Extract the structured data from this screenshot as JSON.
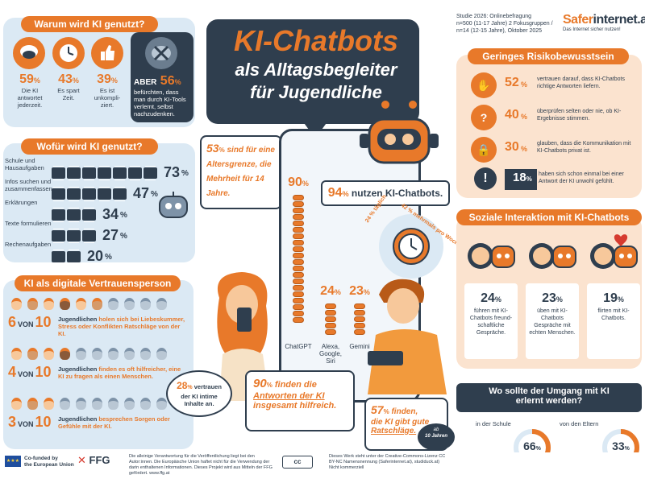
{
  "header": {
    "title": "KI-Chatbots",
    "subtitle_line1": "als Alltagsbegleiter",
    "subtitle_line2": "für Jugendliche",
    "study_line1": "Studie 2026: Onlinebefragung",
    "study_line2": "n=500 (11-17 Jahre) 2 Fokusgruppen /",
    "study_line3": "n=14 (12-15 Jahre), Oktober 2025",
    "brand_a": "Safer",
    "brand_b": "internet.at",
    "brand_tagline": "Das Internet sicher nutzen!"
  },
  "warum": {
    "title": "Warum wird KI genutzt?",
    "items": [
      {
        "pct": "59",
        "unit": "%",
        "text": "Die KI antwortet jederzeit."
      },
      {
        "pct": "43",
        "unit": "%",
        "text": "Es spart Zeit."
      },
      {
        "pct": "39",
        "unit": "%",
        "text": "Es ist unkompli-ziert."
      }
    ],
    "aber_label": "ABER",
    "aber_pct": "56",
    "aber_unit": "%",
    "aber_text": "befürchten, dass man durch KI-Tools verlernt, selbst nachzudenken."
  },
  "wofuer": {
    "title": "Wofür wird KI genutzt?",
    "items": [
      {
        "label": "Schule und Hausaufgaben",
        "pct": "73",
        "unit": "%",
        "value": 73
      },
      {
        "label": "Infos suchen und zusammenfassen",
        "pct": "47",
        "unit": "%",
        "value": 47
      },
      {
        "label": "Erklärungen",
        "pct": "34",
        "unit": "%",
        "value": 34
      },
      {
        "label": "Texte formulieren",
        "pct": "27",
        "unit": "%",
        "value": 27
      },
      {
        "label": "Rechenaufgaben",
        "pct": "20",
        "unit": "%",
        "value": 20
      }
    ]
  },
  "vertrauen": {
    "title": "KI als digitale Vertrauensperson",
    "rows": [
      {
        "n": "6",
        "von": "VON",
        "total": "10",
        "highlight": 6,
        "text_a": "Jugendlichen",
        "text_b": " holen sich bei Liebeskummer, Stress oder Konflikten Ratschläge von der KI."
      },
      {
        "n": "4",
        "von": "VON",
        "total": "10",
        "highlight": 4,
        "text_a": "Jugendlichen",
        "text_b": " finden es oft hilfreicher, eine KI zu fragen als einen Menschen."
      },
      {
        "n": "3",
        "von": "VON",
        "total": "10",
        "highlight": 3,
        "text_a": "Jugendlichen",
        "text_b": " besprechen Sorgen oder Gefühle mit der KI."
      }
    ],
    "bubble_pct": "28",
    "bubble_unit": "%",
    "bubble_text1": " vertrauen",
    "bubble_text2": "der KI intime Inhalte an."
  },
  "center": {
    "age_pct": "53",
    "age_unit": "%",
    "age_text": " sind für eine Altersgrenze, die Mehrheit für 14 Jahre.",
    "nutzen_pct": "94",
    "nutzen_unit": "%",
    "nutzen_text": " nutzen KI-Chatbots.",
    "freq_daily": "24 % täglich",
    "freq_weekly": "42 % mehrmals pro Woche",
    "chatbots": [
      {
        "pct": "90",
        "unit": "%",
        "name": "ChatGPT",
        "value": 90
      },
      {
        "pct": "24",
        "unit": "%",
        "name": "Alexa, Google, Siri",
        "value": 24
      },
      {
        "pct": "23",
        "unit": "%",
        "name": "Gemini",
        "value": 23
      }
    ],
    "helpful_pct": "90",
    "helpful_unit": "%",
    "helpful_text1": " finden die",
    "helpful_text2": "Antworten der KI",
    "helpful_text3": "insgesamt hilfreich.",
    "good_pct": "57",
    "good_unit": "%",
    "good_text1": " finden,",
    "good_text2": "die KI gibt gute",
    "good_text3": "Ratschläge."
  },
  "risiko": {
    "title": "Geringes Risikobewusstsein",
    "items": [
      {
        "pct": "52",
        "unit": "%",
        "text": "vertrauen darauf, dass KI-Chatbots richtige Antworten liefern."
      },
      {
        "pct": "40",
        "unit": "%",
        "text": "überprüfen selten oder nie, ob KI-Ergebnisse stimmen."
      },
      {
        "pct": "30",
        "unit": "%",
        "text": "glauben, dass die Kommunikation mit KI-Chatbots privat ist."
      }
    ],
    "warn_pct": "18",
    "warn_unit": "%",
    "warn_text": "haben sich schon einmal bei einer Antwort der KI unwohl gefühlt."
  },
  "sozial": {
    "title": "Soziale Interaktion mit KI-Chatbots",
    "items": [
      {
        "pct": "24",
        "unit": "%",
        "text": "führen mit KI-Chatbots freund-schaftliche Gespräche."
      },
      {
        "pct": "23",
        "unit": "%",
        "text": "üben mit KI-Chatbots Gespräche mit echten Menschen."
      },
      {
        "pct": "19",
        "unit": "%",
        "text": "flirten mit KI-Chatbots."
      }
    ]
  },
  "umgang": {
    "title1": "Wo sollte der Umgang mit KI",
    "title2": "erlernt werden?",
    "school_label": "in der Schule",
    "school_pct": "66",
    "school_unit": "%",
    "school_value": 66,
    "age_tag1": "ab",
    "age_tag2": "10 Jahren",
    "parents_label": "von den Eltern",
    "parents_pct": "33",
    "parents_unit": "%",
    "parents_value": 33
  },
  "footer": {
    "eu_text1": "Co-funded by",
    "eu_text2": "the European Union",
    "ffg_logo": "FFG",
    "disclaimer": "Die alleinige Verantwortung für die Veröffentlichung liegt bei den Autor:innen. Die Europäische Union haftet nicht für die Verwendung der darin enthaltenen Informationen. Dieses Projekt wird aus Mitteln der FFG gefördert. www.ffg.at",
    "cc_logo": "cc",
    "license": "Dieses Werk steht unter der Creative-Commons-Lizenz CC BY-NC Namensnennung (Saferinternet.at), studiduck.at) Nicht kommerziell"
  },
  "colors": {
    "orange": "#e8792a",
    "navy": "#2f3e4e",
    "light_blue": "#dbe9f4",
    "peach": "#fbe3cf"
  }
}
